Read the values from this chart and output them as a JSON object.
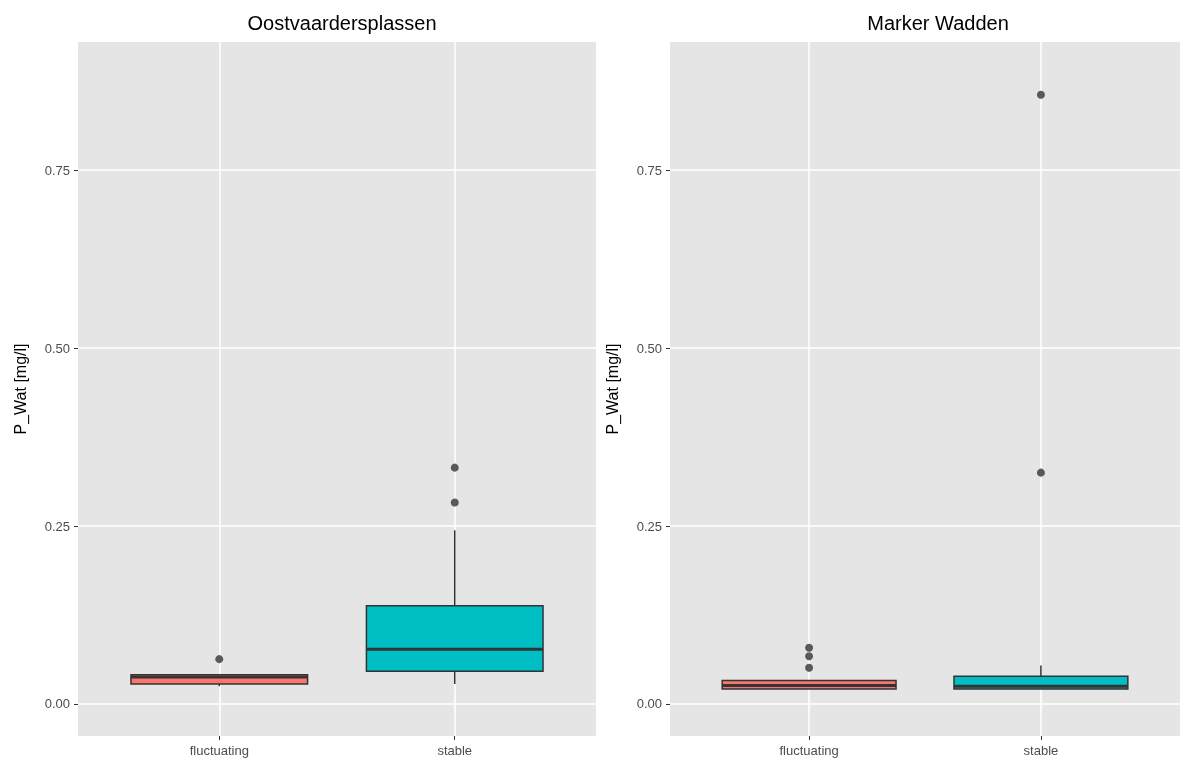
{
  "chart_data": [
    {
      "type": "box",
      "title": "Oostvaardersplassen",
      "ylabel": "P_Wat [mg/l]",
      "categories": [
        "fluctuating",
        "stable"
      ],
      "colors": [
        "#f8766d",
        "#00bfc4"
      ],
      "boxes": [
        {
          "low": 0.025,
          "q1": 0.028,
          "median": 0.038,
          "q3": 0.041,
          "high": 0.041,
          "outliers": [
            0.063
          ]
        },
        {
          "low": 0.028,
          "q1": 0.046,
          "median": 0.077,
          "q3": 0.138,
          "high": 0.244,
          "outliers": [
            0.283,
            0.332
          ]
        }
      ],
      "ylim": [
        -0.045,
        0.93
      ],
      "yticks": [
        {
          "value": 0,
          "label": "0.00"
        },
        {
          "value": 0.25,
          "label": "0.25"
        },
        {
          "value": 0.5,
          "label": "0.50"
        },
        {
          "value": 0.75,
          "label": "0.75"
        }
      ],
      "grid": true
    },
    {
      "type": "box",
      "title": "Marker Wadden",
      "ylabel": "P_Wat [mg/l]",
      "categories": [
        "fluctuating",
        "stable"
      ],
      "colors": [
        "#f8766d",
        "#00bfc4"
      ],
      "boxes": [
        {
          "low": 0.021,
          "q1": 0.021,
          "median": 0.026,
          "q3": 0.033,
          "high": 0.033,
          "outliers": [
            0.051,
            0.067,
            0.079
          ]
        },
        {
          "low": 0.021,
          "q1": 0.021,
          "median": 0.025,
          "q3": 0.039,
          "high": 0.054,
          "outliers": [
            0.325,
            0.856
          ]
        }
      ],
      "ylim": [
        -0.045,
        0.93
      ],
      "yticks": [
        {
          "value": 0,
          "label": "0.00"
        },
        {
          "value": 0.25,
          "label": "0.25"
        },
        {
          "value": 0.5,
          "label": "0.50"
        },
        {
          "value": 0.75,
          "label": "0.75"
        }
      ],
      "grid": true
    }
  ]
}
